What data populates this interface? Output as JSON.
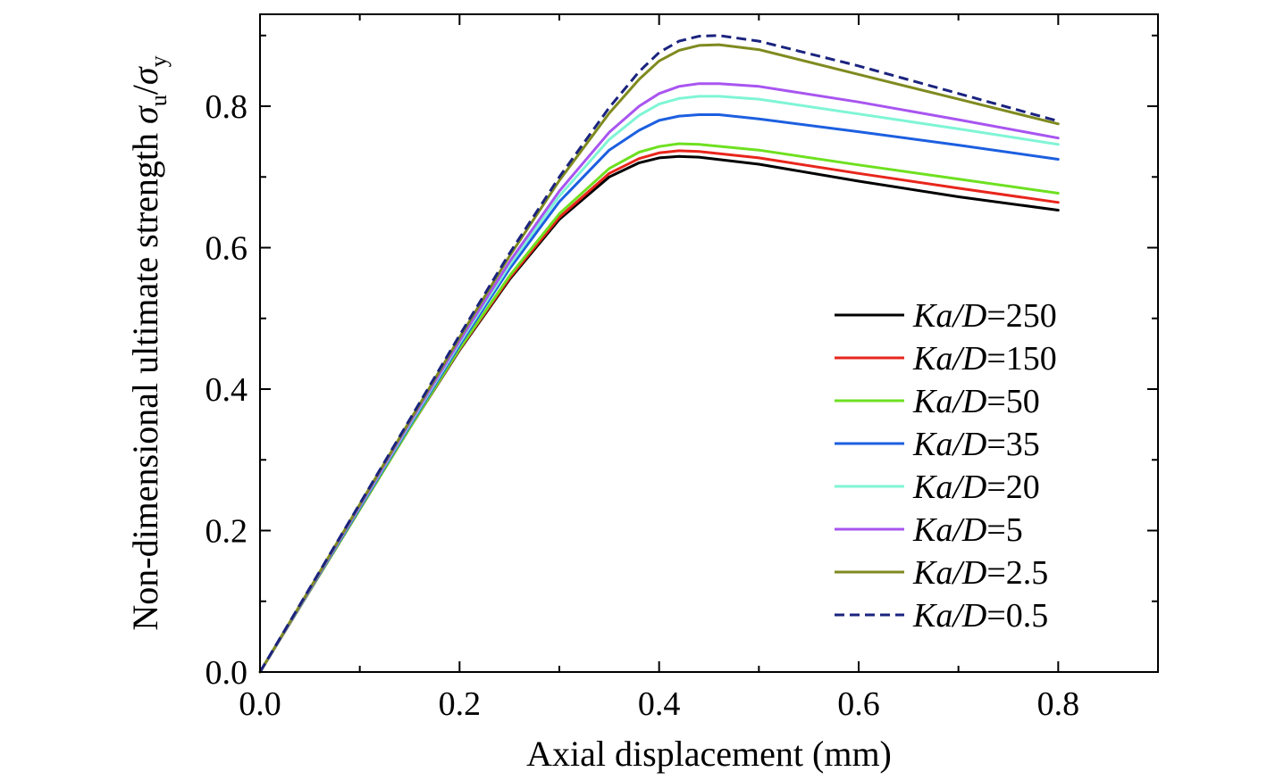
{
  "chart_data": {
    "type": "line",
    "xlabel": "Axial displacement (mm)",
    "ylabel": {
      "prefix": "Non-dimensional ultimate strength ",
      "symbol": "σ",
      "sub1": "u",
      "slash": "/",
      "sub2": "y"
    },
    "xlim": [
      0.0,
      0.9
    ],
    "ylim": [
      0.0,
      0.93
    ],
    "x_ticks": [
      "0.0",
      "0.2",
      "0.4",
      "0.6",
      "0.8"
    ],
    "y_ticks": [
      "0.0",
      "0.2",
      "0.4",
      "0.6",
      "0.8"
    ],
    "grid": false,
    "legend_position": "right-middle",
    "series": [
      {
        "name_prefix": "Ka/D",
        "name_value": "=250",
        "color": "#000000",
        "dashed": false,
        "x": [
          0.0,
          0.05,
          0.1,
          0.15,
          0.2,
          0.25,
          0.3,
          0.35,
          0.38,
          0.4,
          0.42,
          0.44,
          0.5,
          0.6,
          0.7,
          0.8
        ],
        "y": [
          0.0,
          0.115,
          0.23,
          0.345,
          0.455,
          0.555,
          0.64,
          0.7,
          0.72,
          0.727,
          0.729,
          0.728,
          0.718,
          0.694,
          0.672,
          0.653
        ]
      },
      {
        "name_prefix": "Ka/D",
        "name_value": "=150",
        "color": "#e8261c",
        "dashed": false,
        "x": [
          0.0,
          0.05,
          0.1,
          0.15,
          0.2,
          0.25,
          0.3,
          0.35,
          0.38,
          0.4,
          0.42,
          0.44,
          0.5,
          0.6,
          0.7,
          0.8
        ],
        "y": [
          0.0,
          0.115,
          0.23,
          0.345,
          0.456,
          0.557,
          0.643,
          0.705,
          0.726,
          0.734,
          0.737,
          0.736,
          0.727,
          0.705,
          0.684,
          0.664
        ]
      },
      {
        "name_prefix": "Ka/D",
        "name_value": "=50",
        "color": "#6ee020",
        "dashed": false,
        "x": [
          0.0,
          0.05,
          0.1,
          0.15,
          0.2,
          0.25,
          0.3,
          0.35,
          0.38,
          0.4,
          0.42,
          0.44,
          0.5,
          0.6,
          0.7,
          0.8
        ],
        "y": [
          0.0,
          0.115,
          0.23,
          0.345,
          0.457,
          0.56,
          0.648,
          0.712,
          0.735,
          0.743,
          0.747,
          0.746,
          0.738,
          0.717,
          0.697,
          0.677
        ]
      },
      {
        "name_prefix": "Ka/D",
        "name_value": "=35",
        "color": "#1c5fe0",
        "dashed": false,
        "x": [
          0.0,
          0.05,
          0.1,
          0.15,
          0.2,
          0.25,
          0.3,
          0.35,
          0.38,
          0.4,
          0.42,
          0.44,
          0.46,
          0.5,
          0.6,
          0.7,
          0.8
        ],
        "y": [
          0.0,
          0.116,
          0.232,
          0.348,
          0.462,
          0.57,
          0.665,
          0.738,
          0.766,
          0.78,
          0.786,
          0.788,
          0.788,
          0.782,
          0.764,
          0.745,
          0.725
        ]
      },
      {
        "name_prefix": "Ka/D",
        "name_value": "=20",
        "color": "#7ff5d5",
        "dashed": false,
        "x": [
          0.0,
          0.05,
          0.1,
          0.15,
          0.2,
          0.25,
          0.3,
          0.35,
          0.38,
          0.4,
          0.42,
          0.44,
          0.46,
          0.5,
          0.6,
          0.7,
          0.8
        ],
        "y": [
          0.0,
          0.117,
          0.234,
          0.35,
          0.465,
          0.575,
          0.673,
          0.753,
          0.787,
          0.803,
          0.811,
          0.814,
          0.814,
          0.81,
          0.789,
          0.768,
          0.746
        ]
      },
      {
        "name_prefix": "Ka/D",
        "name_value": "=5",
        "color": "#a855f0",
        "dashed": false,
        "x": [
          0.0,
          0.05,
          0.1,
          0.15,
          0.2,
          0.25,
          0.3,
          0.35,
          0.38,
          0.4,
          0.42,
          0.44,
          0.46,
          0.5,
          0.6,
          0.7,
          0.8
        ],
        "y": [
          0.0,
          0.117,
          0.235,
          0.352,
          0.468,
          0.58,
          0.68,
          0.763,
          0.8,
          0.818,
          0.828,
          0.832,
          0.832,
          0.828,
          0.806,
          0.781,
          0.755
        ]
      },
      {
        "name_prefix": "Ka/D",
        "name_value": "=2.5",
        "color": "#7f8a1f",
        "dashed": false,
        "x": [
          0.0,
          0.05,
          0.1,
          0.15,
          0.2,
          0.25,
          0.3,
          0.35,
          0.38,
          0.4,
          0.42,
          0.44,
          0.46,
          0.5,
          0.6,
          0.7,
          0.8
        ],
        "y": [
          0.0,
          0.118,
          0.237,
          0.355,
          0.473,
          0.588,
          0.695,
          0.79,
          0.838,
          0.864,
          0.879,
          0.886,
          0.887,
          0.88,
          0.845,
          0.81,
          0.775
        ]
      },
      {
        "name_prefix": "Ka/D",
        "name_value": "=0.5",
        "color": "#1a237e",
        "dashed": true,
        "x": [
          0.0,
          0.05,
          0.1,
          0.15,
          0.2,
          0.25,
          0.3,
          0.35,
          0.38,
          0.4,
          0.42,
          0.44,
          0.46,
          0.5,
          0.6,
          0.7,
          0.8
        ],
        "y": [
          0.0,
          0.119,
          0.238,
          0.357,
          0.476,
          0.592,
          0.7,
          0.798,
          0.849,
          0.876,
          0.892,
          0.899,
          0.9,
          0.892,
          0.857,
          0.818,
          0.779
        ]
      }
    ]
  }
}
